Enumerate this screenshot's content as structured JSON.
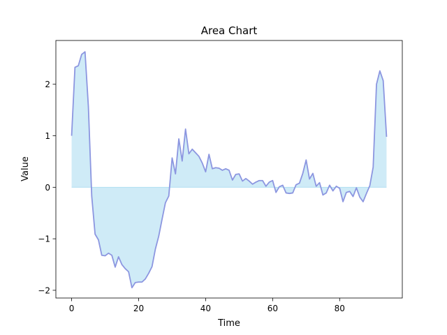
{
  "chart_data": {
    "type": "area",
    "title": "Area Chart",
    "xlabel": "Time",
    "ylabel": "Value",
    "xlim": [
      -4.7,
      98.7
    ],
    "ylim": [
      -2.15,
      2.85
    ],
    "xticks": [
      0,
      20,
      40,
      60,
      80
    ],
    "xtick_labels": [
      "0",
      "20",
      "40",
      "60",
      "80"
    ],
    "yticks": [
      -2,
      -1,
      0,
      1,
      2
    ],
    "ytick_labels": [
      "−2",
      "−1",
      "0",
      "1",
      "2"
    ],
    "grid": false,
    "legend": "none",
    "baseline": 0,
    "colors": {
      "line": "#8c96e0",
      "fill": "#87ceeb",
      "fill_opacity": 0.4
    },
    "x": [
      0,
      1,
      2,
      3,
      4,
      5,
      6,
      7,
      8,
      9,
      10,
      11,
      12,
      13,
      14,
      15,
      16,
      17,
      18,
      19,
      20,
      21,
      22,
      23,
      24,
      25,
      26,
      27,
      28,
      29,
      30,
      31,
      32,
      33,
      34,
      35,
      36,
      37,
      38,
      39,
      40,
      41,
      42,
      43,
      44,
      45,
      46,
      47,
      48,
      49,
      50,
      51,
      52,
      53,
      54,
      55,
      56,
      57,
      58,
      59,
      60,
      61,
      62,
      63,
      64,
      65,
      66,
      67,
      68,
      69,
      70,
      71,
      72,
      73,
      74,
      75,
      76,
      77,
      78,
      79,
      80,
      81,
      82,
      83,
      84,
      85,
      86,
      87,
      88,
      89,
      90,
      91,
      92,
      93,
      94
    ],
    "y": [
      1.0,
      2.33,
      2.36,
      2.58,
      2.63,
      1.57,
      -0.17,
      -0.91,
      -1.02,
      -1.32,
      -1.33,
      -1.28,
      -1.32,
      -1.55,
      -1.35,
      -1.5,
      -1.58,
      -1.64,
      -1.95,
      -1.85,
      -1.84,
      -1.84,
      -1.78,
      -1.67,
      -1.54,
      -1.2,
      -0.95,
      -0.62,
      -0.3,
      -0.17,
      0.57,
      0.26,
      0.94,
      0.51,
      1.13,
      0.65,
      0.74,
      0.67,
      0.6,
      0.47,
      0.3,
      0.64,
      0.36,
      0.38,
      0.37,
      0.33,
      0.36,
      0.33,
      0.14,
      0.25,
      0.26,
      0.12,
      0.17,
      0.12,
      0.06,
      0.1,
      0.13,
      0.13,
      0.02,
      0.1,
      0.13,
      -0.1,
      0.01,
      0.04,
      -0.11,
      -0.12,
      -0.11,
      0.05,
      0.08,
      0.27,
      0.53,
      0.16,
      0.27,
      0.02,
      0.09,
      -0.15,
      -0.11,
      0.04,
      -0.07,
      0.02,
      -0.02,
      -0.28,
      -0.1,
      -0.08,
      -0.18,
      -0.01,
      -0.19,
      -0.28,
      -0.12,
      0.03,
      0.39,
      2.0,
      2.26,
      2.07,
      0.98
    ]
  }
}
